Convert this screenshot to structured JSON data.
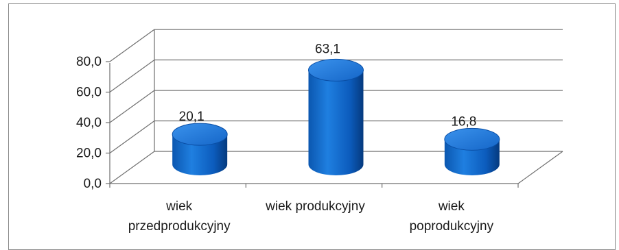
{
  "chart_data": {
    "type": "bar",
    "style": "3d-cylinder",
    "categories": [
      [
        "wiek",
        "przedprodukcyjny"
      ],
      [
        "wiek produkcyjny"
      ],
      [
        "wiek",
        "poprodukcyjny"
      ]
    ],
    "values": [
      20.1,
      63.1,
      16.8
    ],
    "value_labels": [
      "20,1",
      "63,1",
      "16,8"
    ],
    "y_ticks": [
      "0,0",
      "20,0",
      "40,0",
      "60,0",
      "80,0"
    ],
    "ylim": [
      0,
      80
    ],
    "grid": true,
    "legend": "none",
    "colors": {
      "bar": "#0a62c4",
      "bar_dark": "#043a82",
      "bar_top": "#2a86e6",
      "grid": "#6f6f6f"
    }
  }
}
